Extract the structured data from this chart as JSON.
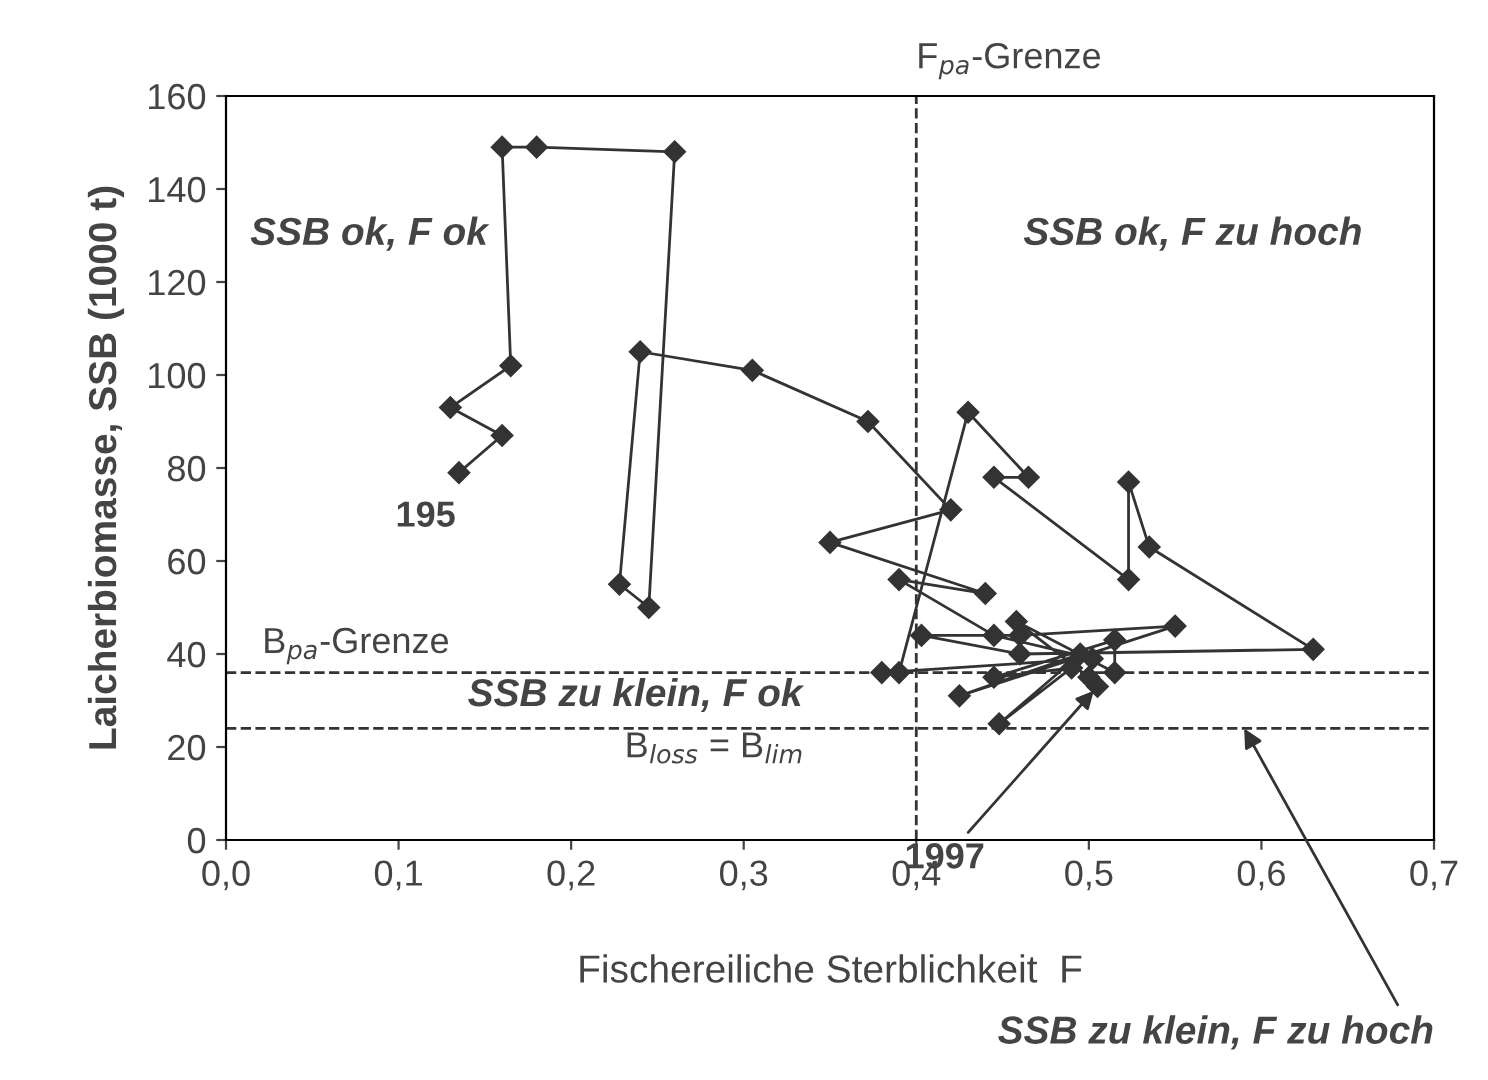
{
  "chart_data": {
    "type": "line",
    "xlabel": "Fischereiliche Sterblichkeit  F",
    "ylabel": "Laicherbiomasse, SSB (1000 t)",
    "series": [
      {
        "color": "#333333",
        "marker": "diamond",
        "x": [
          0.135,
          0.16,
          0.13,
          0.165,
          0.16,
          0.18,
          0.26,
          0.245,
          0.228,
          0.24,
          0.305,
          0.372,
          0.42,
          0.35,
          0.44,
          0.39,
          0.445,
          0.502,
          0.38,
          0.39,
          0.43,
          0.465,
          0.445,
          0.523,
          0.523,
          0.535,
          0.63,
          0.46,
          0.403,
          0.46,
          0.55,
          0.425,
          0.495,
          0.448,
          0.49,
          0.445,
          0.515,
          0.515,
          0.458,
          0.5,
          0.505
        ],
        "values": [
          79,
          87,
          93,
          102,
          149,
          149,
          148,
          50,
          55,
          105,
          101,
          90,
          71,
          64,
          53,
          56,
          44,
          39,
          36,
          36,
          92,
          78,
          78,
          56,
          77,
          63,
          41,
          40,
          44,
          44,
          46,
          31,
          40,
          25,
          37,
          35,
          43,
          36,
          47,
          35,
          33
        ]
      }
    ],
    "xlim": [
      0,
      0.7
    ],
    "xticks": [
      {
        "value": 0,
        "label": "0,0"
      },
      {
        "value": 0.1,
        "label": "0,1"
      },
      {
        "value": 0.2,
        "label": "0,2"
      },
      {
        "value": 0.3,
        "label": "0,3"
      },
      {
        "value": 0.4,
        "label": "0,4"
      },
      {
        "value": 0.5,
        "label": "0,5"
      },
      {
        "value": 0.6,
        "label": "0,6"
      },
      {
        "value": 0.7,
        "label": "0,7"
      }
    ],
    "ylim": [
      0,
      160
    ],
    "yticks": [
      0,
      20,
      40,
      60,
      80,
      100,
      120,
      140,
      160
    ],
    "grid": false,
    "legend": false,
    "ref_lines": [
      {
        "axis": "x",
        "value": 0.4,
        "label": "F$_{pa}$-Grenze",
        "line_style": "dashed",
        "color": "#333333"
      },
      {
        "axis": "y",
        "value": 36,
        "label": "B$_{pa}$-Grenze",
        "line_style": "dashed",
        "color": "#333333"
      },
      {
        "axis": "y",
        "value": 24,
        "label": "B$_{loss}$ = B$_{lim}$",
        "line_style": "dashed",
        "color": "#333333"
      }
    ],
    "annotations": [
      "SSB ok, F ok",
      "SSB ok, F zu hoch",
      "SSB zu klein, F ok",
      {
        "text": "SSB zu klein, F zu hoch",
        "x": 0.59,
        "y": 24
      },
      {
        "text": "195",
        "x": 0.135,
        "y": 79
      },
      {
        "text": "1997",
        "x": 0.505,
        "y": 33
      }
    ]
  }
}
